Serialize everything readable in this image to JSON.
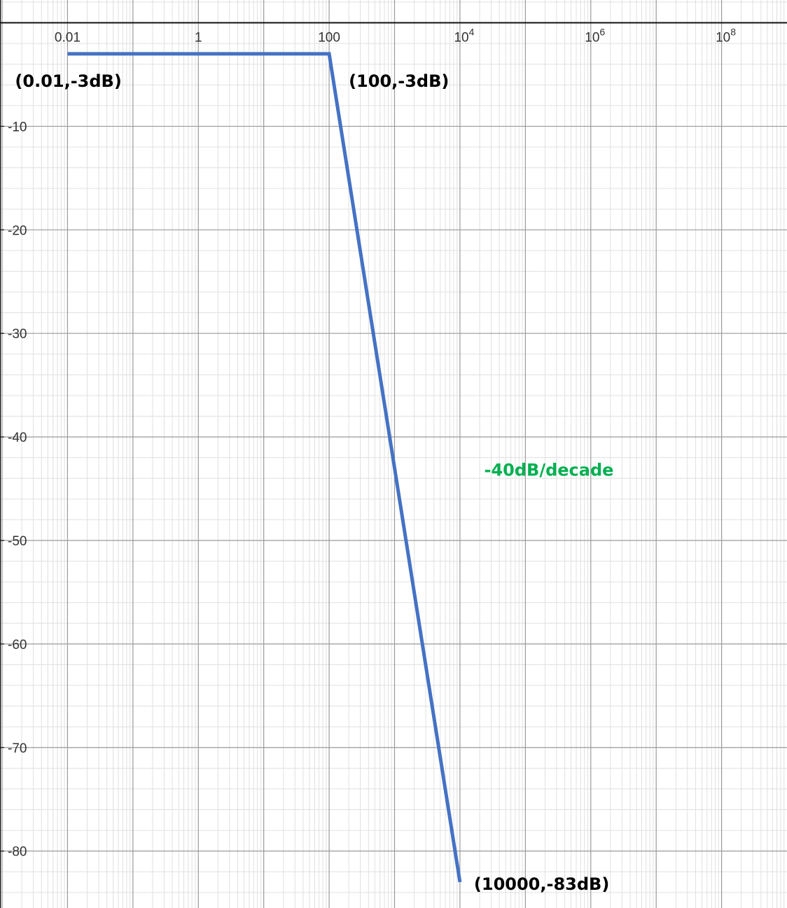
{
  "chart_data": {
    "type": "line",
    "x_scale": "log",
    "x_range": [
      0.001,
      1000000000
    ],
    "y_range": [
      -85.5,
      2.2
    ],
    "grid": true,
    "x_ticks": [
      {
        "value": 0.01,
        "base": "0.01",
        "exp": ""
      },
      {
        "value": 1,
        "base": "1",
        "exp": ""
      },
      {
        "value": 100,
        "base": "100",
        "exp": ""
      },
      {
        "value": 10000,
        "base": "10",
        "exp": "4"
      },
      {
        "value": 1000000,
        "base": "10",
        "exp": "6"
      },
      {
        "value": 100000000,
        "base": "10",
        "exp": "8"
      }
    ],
    "y_ticks": [
      {
        "value": -10,
        "label": "-10"
      },
      {
        "value": -20,
        "label": "-20"
      },
      {
        "value": -30,
        "label": "-30"
      },
      {
        "value": -40,
        "label": "-40"
      },
      {
        "value": -50,
        "label": "-50"
      },
      {
        "value": -60,
        "label": "-60"
      },
      {
        "value": -70,
        "label": "-70"
      },
      {
        "value": -80,
        "label": "-80"
      }
    ],
    "series": [
      {
        "color": "#4472c4",
        "points": [
          {
            "x": 0.01,
            "y": -3
          },
          {
            "x": 100,
            "y": -3
          },
          {
            "x": 10000,
            "y": -83
          }
        ]
      }
    ],
    "annotations": [
      {
        "text": "(0.01,-3dB)",
        "x": 0.01,
        "y": -3,
        "anchor": "below-left",
        "color": "#000000"
      },
      {
        "text": "(100,-3dB)",
        "x": 100,
        "y": -3,
        "anchor": "below-right",
        "color": "#000000"
      },
      {
        "text": "(10000,-83dB)",
        "x": 10000,
        "y": -83,
        "anchor": "right",
        "color": "#000000"
      },
      {
        "text": "-40dB/decade",
        "x": 1000,
        "y": -43,
        "anchor": "right",
        "color": "#00b050"
      }
    ],
    "colors": {
      "major_grid": "#9a9a9a",
      "minor_grid": "#e0e0e0",
      "axis": "#111111"
    }
  }
}
